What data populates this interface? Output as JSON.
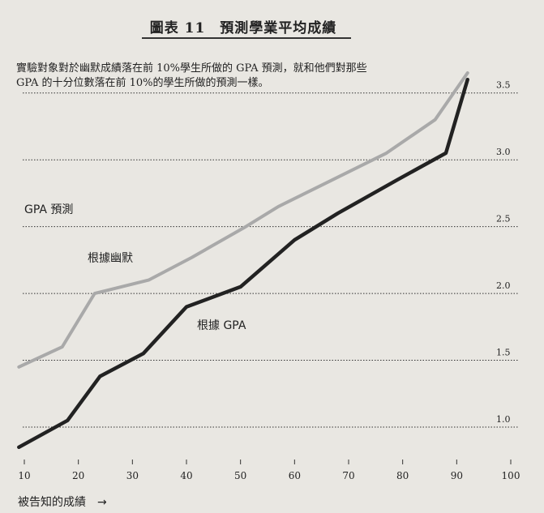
{
  "figure": {
    "title": "圖表 11　預測學業平均成績",
    "subtitle_line1": "實驗對象對於幽默成績落在前 10%學生所做的 GPA 預測，就和他們對那些",
    "subtitle_line2": "GPA 的十分位數落在前 10%的學生所做的預測一樣。"
  },
  "chart_data": {
    "type": "line",
    "title": "圖表 11　預測學業平均成績",
    "xlabel": "被告知的成績　→",
    "ylabel": "",
    "x_ticks": [
      10,
      20,
      30,
      40,
      50,
      60,
      70,
      80,
      90,
      100
    ],
    "y_ticks": [
      "1.0",
      "1.5",
      "2.0",
      "2.5",
      "3.0",
      "3.5"
    ],
    "y_tick_values": [
      1.0,
      1.5,
      2.0,
      2.5,
      3.0,
      3.5
    ],
    "xlim": [
      10,
      100
    ],
    "ylim": [
      0.8,
      3.65
    ],
    "grid": "dotted horizontal at y ticks",
    "annotations": [
      "GPA 預測",
      "根據幽默",
      "根據 GPA"
    ],
    "series": [
      {
        "name": "根據幽默",
        "color": "#a9a9a9",
        "x": [
          9,
          17,
          23,
          33,
          41,
          51,
          57,
          67,
          77,
          86,
          92
        ],
        "y": [
          1.45,
          1.6,
          2.0,
          2.1,
          2.27,
          2.5,
          2.65,
          2.85,
          3.05,
          3.3,
          3.65
        ]
      },
      {
        "name": "根據 GPA",
        "color": "#222222",
        "x": [
          9,
          18,
          24,
          32,
          40,
          50,
          60,
          68,
          79,
          88,
          92
        ],
        "y": [
          0.85,
          1.05,
          1.38,
          1.55,
          1.9,
          2.05,
          2.4,
          2.6,
          2.85,
          3.05,
          3.6
        ]
      }
    ]
  }
}
